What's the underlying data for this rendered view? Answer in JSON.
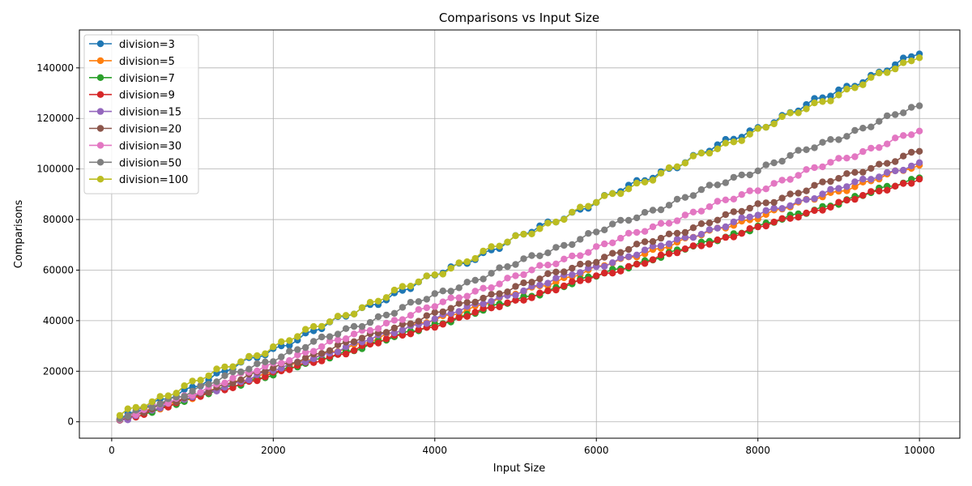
{
  "chart_data": {
    "type": "line",
    "title": "Comparisons vs Input Size",
    "xlabel": "Input Size",
    "ylabel": "Comparisons",
    "xlim": [
      -400,
      10500
    ],
    "ylim": [
      -6500,
      155000
    ],
    "grid": true,
    "legend_position": "top-left",
    "xticks": [
      0,
      2000,
      4000,
      6000,
      8000,
      10000
    ],
    "yticks": [
      0,
      20000,
      40000,
      60000,
      80000,
      100000,
      120000,
      140000
    ],
    "x": {
      "start": 100,
      "step": 100,
      "count": 100
    },
    "series": [
      {
        "name": "division=3",
        "color": "#1f77b4",
        "start": 800,
        "end": 145500,
        "slope": 14.6
      },
      {
        "name": "division=5",
        "color": "#ff7f0e",
        "start": 700,
        "end": 101500,
        "slope": 10.2
      },
      {
        "name": "division=7",
        "color": "#2ca02c",
        "start": 600,
        "end": 96500,
        "slope": 9.65
      },
      {
        "name": "division=9",
        "color": "#d62728",
        "start": 600,
        "end": 96000,
        "slope": 9.6
      },
      {
        "name": "division=15",
        "color": "#9467bd",
        "start": 700,
        "end": 102500,
        "slope": 10.25
      },
      {
        "name": "division=20",
        "color": "#8c564b",
        "start": 800,
        "end": 107000,
        "slope": 10.7
      },
      {
        "name": "division=30",
        "color": "#e377c2",
        "start": 900,
        "end": 115000,
        "slope": 11.5
      },
      {
        "name": "division=50",
        "color": "#7f7f7f",
        "start": 1200,
        "end": 125000,
        "slope": 12.5
      },
      {
        "name": "division=100",
        "color": "#bcbd22",
        "start": 2500,
        "end": 144000,
        "slope": 14.4
      }
    ]
  }
}
